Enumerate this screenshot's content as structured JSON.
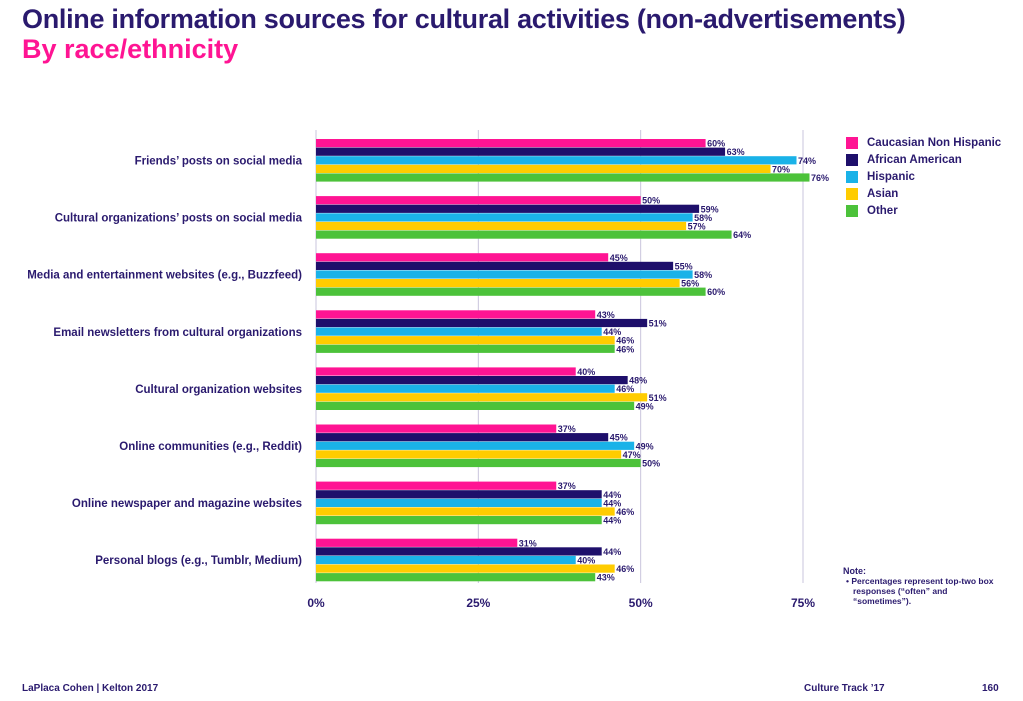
{
  "header": {
    "title": "Online information sources for cultural activities (non-advertisements)",
    "subtitle": "By race/ethnicity"
  },
  "chart_data": {
    "type": "bar",
    "orientation": "horizontal",
    "title": "Online information sources for cultural activities (non-advertisements)",
    "subtitle": "By race/ethnicity",
    "categories": [
      "Friends’ posts on social media",
      "Cultural organizations’ posts on social media",
      "Media and entertainment websites (e.g., Buzzfeed)",
      "Email newsletters from cultural organizations",
      "Cultural organization websites",
      "Online communities (e.g., Reddit)",
      "Online newspaper and magazine websites",
      "Personal blogs (e.g., Tumblr, Medium)"
    ],
    "series": [
      {
        "name": "Caucasian Non Hispanic",
        "color": "#ff1493",
        "values": [
          60,
          50,
          45,
          43,
          40,
          37,
          37,
          31
        ]
      },
      {
        "name": "African American",
        "color": "#1e0f6b",
        "values": [
          63,
          59,
          55,
          51,
          48,
          45,
          44,
          44
        ]
      },
      {
        "name": "Hispanic",
        "color": "#1ab2e8",
        "values": [
          74,
          58,
          58,
          44,
          46,
          49,
          44,
          40
        ]
      },
      {
        "name": "Asian",
        "color": "#ffcc00",
        "values": [
          70,
          57,
          56,
          46,
          51,
          47,
          46,
          46
        ]
      },
      {
        "name": "Other",
        "color": "#4cc23a",
        "values": [
          76,
          64,
          60,
          46,
          49,
          50,
          44,
          43
        ]
      }
    ],
    "xlim": [
      0,
      75
    ],
    "xticks": [
      0,
      25,
      50,
      75
    ],
    "tick_labels": [
      "0%",
      "25%",
      "50%",
      "75%"
    ],
    "value_suffix": "%",
    "grid": true,
    "legend_position": "right"
  },
  "note": {
    "title": "Note:",
    "text": "• Percentages represent top-two box responses (“often” and “sometimes”)."
  },
  "footer": {
    "left": "LaPlaca Cohen | Kelton 2017",
    "right": "Culture Track ’17",
    "page": "160"
  }
}
